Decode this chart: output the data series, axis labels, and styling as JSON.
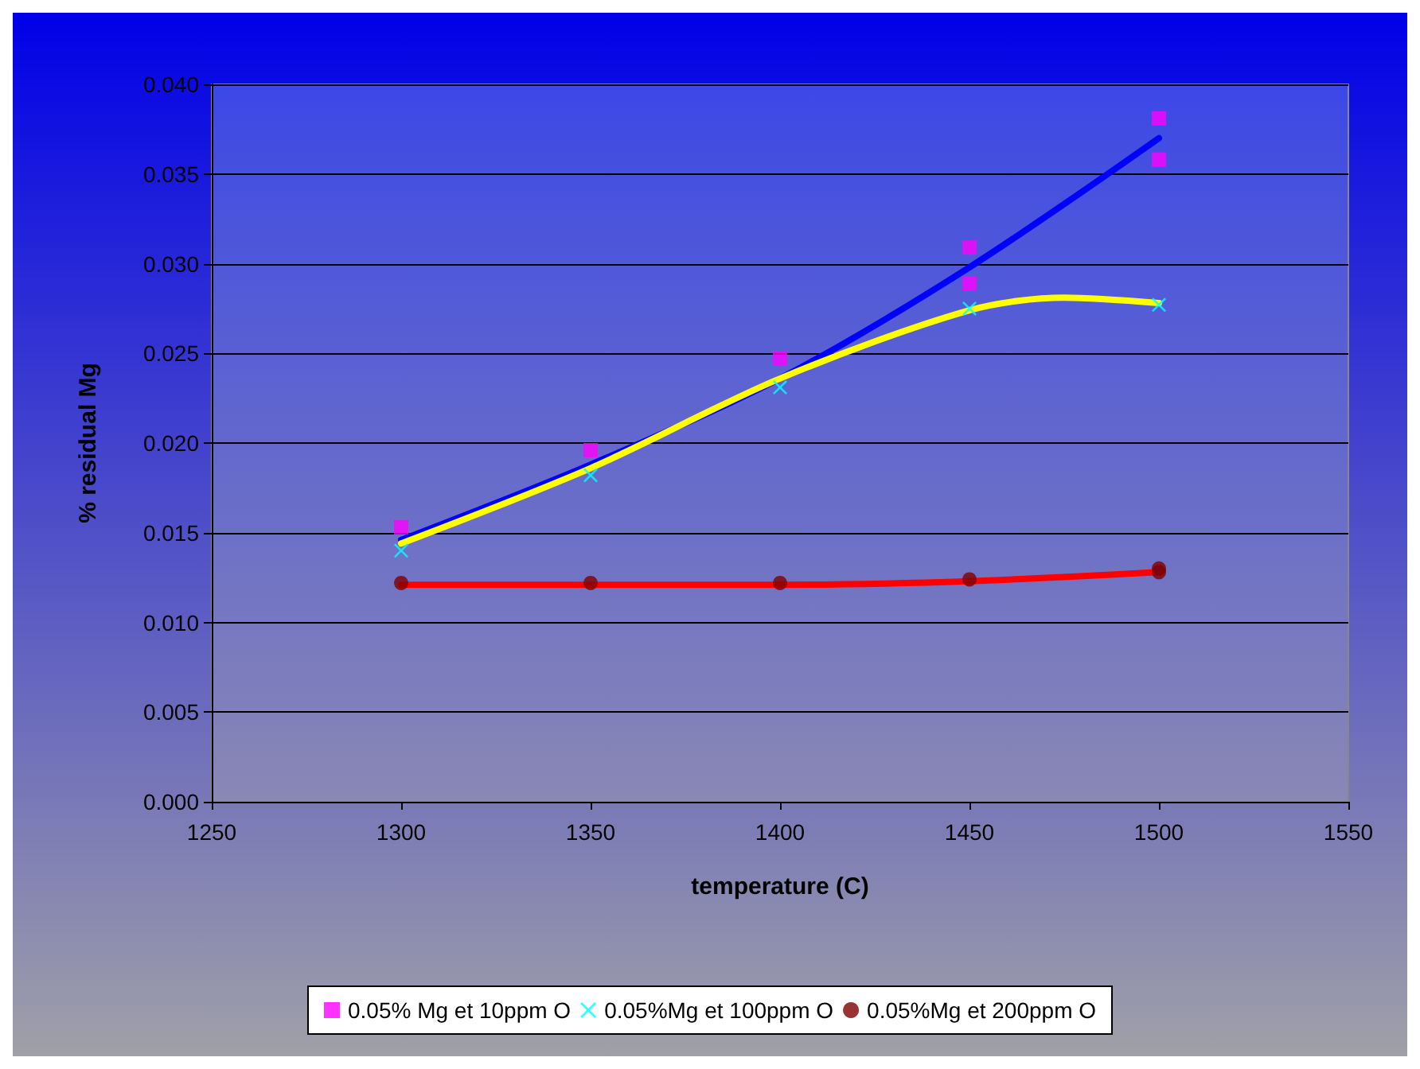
{
  "chart_data": {
    "type": "scatter",
    "xlabel": "temperature (C)",
    "ylabel": "% residual Mg",
    "xlim": [
      1250,
      1550
    ],
    "xticks": [
      1250,
      1300,
      1350,
      1400,
      1450,
      1500,
      1550
    ],
    "ylim": [
      0,
      0.04
    ],
    "yticks": [
      {
        "value": 0,
        "label": "0.000"
      },
      {
        "value": 0.005,
        "label": "0.005"
      },
      {
        "value": 0.01,
        "label": "0.010"
      },
      {
        "value": 0.015,
        "label": "0.015"
      },
      {
        "value": 0.02,
        "label": "0.020"
      },
      {
        "value": 0.025,
        "label": "0.025"
      },
      {
        "value": 0.03,
        "label": "0.030"
      },
      {
        "value": 0.035,
        "label": "0.035"
      },
      {
        "value": 0.04,
        "label": "0.040"
      }
    ],
    "grid": "y",
    "legend": "bottom",
    "series": [
      {
        "type": "line",
        "color": "#0000ff",
        "marker": "none",
        "x": [
          1300,
          1350,
          1400,
          1450,
          1500
        ],
        "values": [
          0.0146,
          0.0188,
          0.0236,
          0.0298,
          0.037
        ]
      },
      {
        "type": "line",
        "color": "#ffff00",
        "marker": "none",
        "x": [
          1300,
          1350,
          1400,
          1450,
          1475,
          1500
        ],
        "values": [
          0.0144,
          0.0186,
          0.0236,
          0.0274,
          0.0281,
          0.0278
        ]
      },
      {
        "type": "line",
        "color": "#ff0000",
        "marker": "none",
        "x": [
          1300,
          1400,
          1450,
          1500
        ],
        "values": [
          0.0121,
          0.0121,
          0.0123,
          0.0128
        ]
      },
      {
        "name": "0.05% Mg et 10ppm O",
        "color": "#ff00ff",
        "marker": "square",
        "x": [
          1300,
          1350,
          1400,
          1450,
          1450,
          1500,
          1500
        ],
        "values": [
          0.0153,
          0.0196,
          0.0247,
          0.0309,
          0.0289,
          0.0381,
          0.0358
        ]
      },
      {
        "name": "0.05%Mg et 100ppm O",
        "color": "#00ffff",
        "marker": "cross",
        "x": [
          1300,
          1350,
          1400,
          1450,
          1500
        ],
        "values": [
          0.014,
          0.0182,
          0.0231,
          0.0275,
          0.0277
        ]
      },
      {
        "name": "0.05%Mg et 200ppm O",
        "color": "#800000",
        "marker": "circle",
        "x": [
          1300,
          1350,
          1400,
          1450,
          1500,
          1500
        ],
        "values": [
          0.0122,
          0.0122,
          0.0122,
          0.0124,
          0.013,
          0.0128
        ]
      }
    ]
  }
}
